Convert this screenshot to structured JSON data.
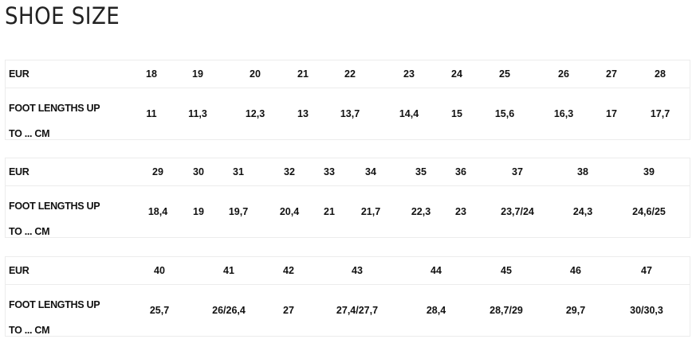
{
  "title": "SHOE SIZE",
  "tables": [
    {
      "eur_label": "EUR",
      "foot_label_1": "FOOT LENGTHS UP",
      "foot_label_2": "TO ... CM",
      "eur": [
        "18",
        "19",
        "20",
        "21",
        "22",
        "23",
        "24",
        "25",
        "26",
        "27",
        "28"
      ],
      "foot": [
        "11",
        "11,3",
        "12,3",
        "13",
        "13,7",
        "14,4",
        "15",
        "15,6",
        "16,3",
        "17",
        "17,7"
      ]
    },
    {
      "eur_label": "EUR",
      "foot_label_1": "FOOT LENGTHS UP",
      "foot_label_2": "TO ... CM",
      "eur": [
        "29",
        "30",
        "31",
        "32",
        "33",
        "34",
        "35",
        "36",
        "37",
        "38",
        "39"
      ],
      "foot": [
        "18,4",
        "19",
        "19,7",
        "20,4",
        "21",
        "21,7",
        "22,3",
        "23",
        "23,7/24",
        "24,3",
        "24,6/25"
      ]
    },
    {
      "eur_label": "EUR",
      "foot_label_1": "FOOT LENGTHS UP",
      "foot_label_2": "TO ... CM",
      "eur": [
        "40",
        "41",
        "42",
        "43",
        "44",
        "45",
        "46",
        "47"
      ],
      "foot": [
        "25,7",
        "26/26,4",
        "27",
        "27,4/27,7",
        "28,4",
        "28,7/29",
        "29,7",
        "30/30,3"
      ]
    }
  ]
}
